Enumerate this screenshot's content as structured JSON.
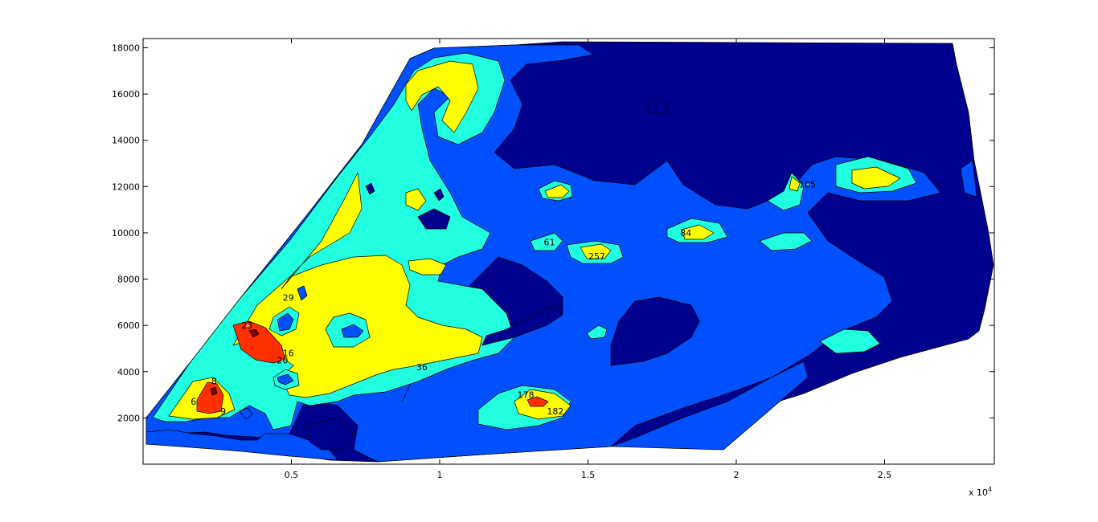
{
  "chart_data": {
    "type": "heatmap",
    "subtype": "filled-contour",
    "title": "",
    "xlabel": "",
    "ylabel": "",
    "xlim": [
      0,
      28700
    ],
    "ylim": [
      0,
      18400
    ],
    "x_ticks": [
      5000,
      10000,
      15000,
      20000,
      25000
    ],
    "x_tick_labels": [
      "0.5",
      "1",
      "1.5",
      "2",
      "2.5"
    ],
    "x_exponent_label": "x 10",
    "x_exponent_power": "4",
    "y_ticks": [
      2000,
      4000,
      6000,
      8000,
      10000,
      12000,
      14000,
      16000,
      18000
    ],
    "y_tick_labels": [
      "2000",
      "4000",
      "6000",
      "8000",
      "10000",
      "12000",
      "14000",
      "16000",
      "18000"
    ],
    "grid": false,
    "colors": {
      "level_1": "#00008f",
      "level_2": "#0050ff",
      "level_3": "#20ffe0",
      "level_4": "#ffff00",
      "level_5": "#ff3000",
      "level_6": "#800000",
      "axes_background": "#ffffff",
      "figure_background": "#ffffff"
    },
    "contour_labels": [
      {
        "text": "6",
        "x": 1700,
        "y": 2700
      },
      {
        "text": "8",
        "x": 2400,
        "y": 3600
      },
      {
        "text": "9",
        "x": 2700,
        "y": 2300
      },
      {
        "text": "23",
        "x": 3500,
        "y": 6000
      },
      {
        "text": "16",
        "x": 4900,
        "y": 4800
      },
      {
        "text": "20",
        "x": 4700,
        "y": 4500
      },
      {
        "text": "29",
        "x": 4900,
        "y": 7200
      },
      {
        "text": "36",
        "x": 9400,
        "y": 4200
      },
      {
        "text": "178",
        "x": 12900,
        "y": 3000
      },
      {
        "text": "182",
        "x": 13900,
        "y": 2300
      },
      {
        "text": "61",
        "x": 13700,
        "y": 9600
      },
      {
        "text": "257",
        "x": 15300,
        "y": 9000
      },
      {
        "text": "84",
        "x": 18300,
        "y": 10000
      },
      {
        "text": "105",
        "x": 22400,
        "y": 12100
      }
    ]
  }
}
